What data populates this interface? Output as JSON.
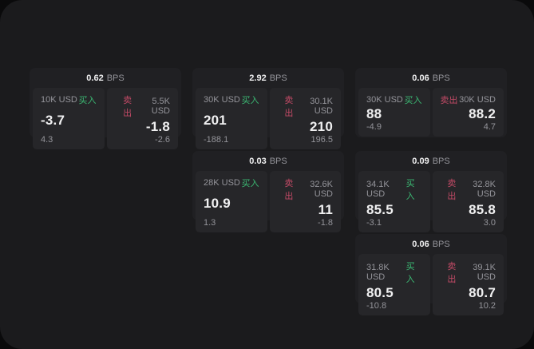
{
  "theme": {
    "bg_outer": "#0a0a0b",
    "bg_window": "#1b1b1d",
    "card_bg": "#202023",
    "panel_bg": "#262629",
    "text_primary": "#f0f0f1",
    "text_secondary": "#94949a",
    "buy_green": "#3bb873",
    "sell_red": "#c24a66"
  },
  "labels": {
    "bps_unit": "BPS",
    "buy": "买入",
    "sell": "卖出"
  },
  "cards": [
    {
      "row": 1,
      "col": 1,
      "bps": "0.62",
      "buy": {
        "amount": "10K USD",
        "price": "-3.7",
        "delta": "4.3"
      },
      "sell": {
        "amount": "5.5K USD",
        "price": "-1.8",
        "delta": "-2.6"
      }
    },
    {
      "row": 1,
      "col": 2,
      "bps": "2.92",
      "buy": {
        "amount": "30K USD",
        "price": "201",
        "delta": "-188.1"
      },
      "sell": {
        "amount": "30.1K USD",
        "price": "210",
        "delta": "196.5"
      }
    },
    {
      "row": 1,
      "col": 3,
      "bps": "0.06",
      "buy": {
        "amount": "30K USD",
        "price": "88",
        "delta": "-4.9"
      },
      "sell": {
        "amount": "30K USD",
        "price": "88.2",
        "delta": "4.7"
      }
    },
    {
      "row": 2,
      "col": 2,
      "bps": "0.03",
      "buy": {
        "amount": "28K USD",
        "price": "10.9",
        "delta": "1.3"
      },
      "sell": {
        "amount": "32.6K USD",
        "price": "11",
        "delta": "-1.8"
      }
    },
    {
      "row": 2,
      "col": 3,
      "bps": "0.09",
      "buy": {
        "amount": "34.1K USD",
        "price": "85.5",
        "delta": "-3.1"
      },
      "sell": {
        "amount": "32.8K USD",
        "price": "85.8",
        "delta": "3.0"
      }
    },
    {
      "row": 3,
      "col": 3,
      "bps": "0.06",
      "buy": {
        "amount": "31.8K USD",
        "price": "80.5",
        "delta": "-10.8"
      },
      "sell": {
        "amount": "39.1K USD",
        "price": "80.7",
        "delta": "10.2"
      }
    }
  ]
}
